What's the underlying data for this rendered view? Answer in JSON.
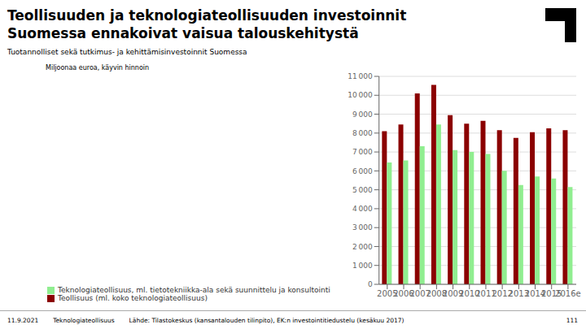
{
  "chart_data": {
    "type": "bar",
    "title": "Teollisuuden ja teknologiateollisuuden investoinnit\nSuomessa ennakoivat vaisua talouskehitystä",
    "subtitle": "Tuotannolliset sekä tutkimus- ja kehittämisinvestoinnit Suomessa",
    "ylabel": "Miljoonaa euroa, käyvin hinnoin",
    "categories": [
      "2005",
      "2006",
      "2007",
      "2008",
      "2009",
      "2010",
      "2011",
      "2012",
      "2013",
      "2014",
      "2015",
      "2016e"
    ],
    "series": [
      {
        "name": "Teollisuus (ml. koko teknologiateollisuus)",
        "color": "#8B0000",
        "values": [
          8100,
          8450,
          10100,
          10550,
          8950,
          8500,
          8650,
          8150,
          7750,
          8050,
          8250,
          8150
        ]
      },
      {
        "name": "Teknologiateollisuus, ml. tietotekniikka-ala sekä suunnittelu ja konsultointi",
        "color": "#90EE90",
        "values": [
          6450,
          6550,
          7300,
          8450,
          7100,
          7000,
          6900,
          6000,
          5250,
          5700,
          5600,
          5150
        ]
      }
    ],
    "ylim": [
      0,
      11000
    ],
    "yticks": [
      0,
      {
        "value": 1000,
        "label": "1 000"
      },
      {
        "value": 2000,
        "label": "2 000"
      },
      {
        "value": 3000,
        "label": "3 000"
      },
      {
        "value": 4000,
        "label": "4 000"
      },
      {
        "value": 5000,
        "label": "5 000"
      },
      {
        "value": 6000,
        "label": "6 000"
      },
      {
        "value": 7000,
        "label": "7 000"
      },
      {
        "value": 8000,
        "label": "8 000"
      },
      {
        "value": 9000,
        "label": "9 000"
      },
      {
        "value": 10000,
        "label": "10 000"
      },
      {
        "value": 11000,
        "label": "11 000"
      }
    ],
    "grid": true,
    "legend": "bottom left",
    "annotations": [
      "11.9.2021",
      "Teknologiateollisuus",
      "Lähde: Tilastokeskus (kansantalouden tilinpito), EK:n investointitiedustelu (kesäkuu 2017)",
      "111"
    ]
  }
}
